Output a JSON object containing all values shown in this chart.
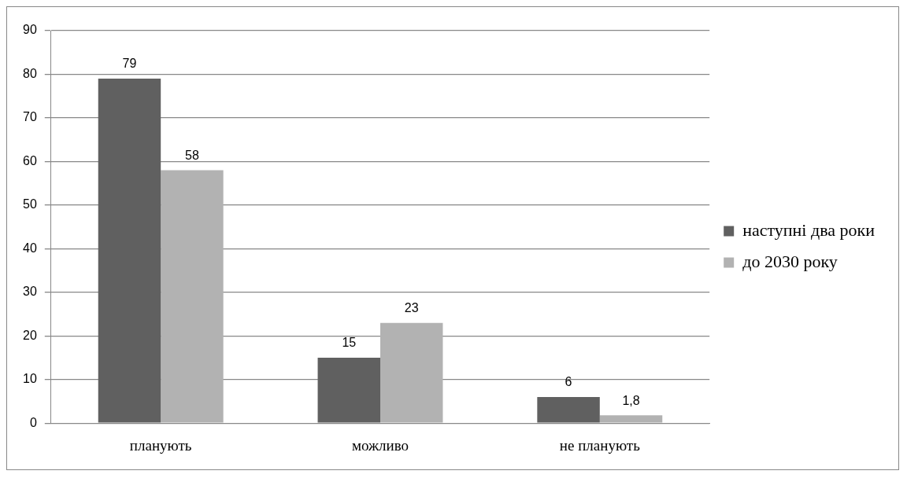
{
  "chart_data": {
    "type": "bar",
    "categories": [
      "планують",
      "можливо",
      "не планують"
    ],
    "series": [
      {
        "name": "наступні два роки",
        "color": "#606060",
        "values": [
          79,
          15,
          6
        ],
        "value_labels": [
          "79",
          "15",
          "6"
        ]
      },
      {
        "name": "до 2030 року",
        "color": "#b2b2b2",
        "values": [
          58,
          23,
          1.8
        ],
        "value_labels": [
          "58",
          "23",
          "1,8"
        ]
      }
    ],
    "ylim": [
      0,
      90
    ],
    "yticks": [
      0,
      10,
      20,
      30,
      40,
      50,
      60,
      70,
      80,
      90
    ],
    "grid": "y",
    "legend": "right"
  }
}
